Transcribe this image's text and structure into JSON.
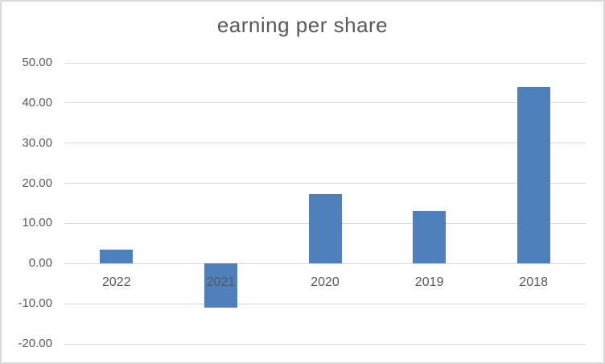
{
  "colors": {
    "bar": "#4e80bc",
    "gridline": "#d9d9d9",
    "text": "#595959",
    "border": "#d9d9d9",
    "background": "#ffffff"
  },
  "chart_data": {
    "type": "bar",
    "title": "earning per share",
    "categories": [
      "2022",
      "2021",
      "2020",
      "2019",
      "2018"
    ],
    "values": [
      3.5,
      -11.0,
      17.3,
      13.0,
      44.0
    ],
    "xlabel": "",
    "ylabel": "",
    "ylim": [
      -20,
      50
    ],
    "ytick_values": [
      50,
      40,
      30,
      20,
      10,
      0,
      -10,
      -20
    ],
    "ytick_labels": [
      "50.00",
      "40.00",
      "30.00",
      "20.00",
      "10.00",
      "0.00",
      "-10.00",
      "-20.00"
    ],
    "grid": true,
    "legend": false
  }
}
